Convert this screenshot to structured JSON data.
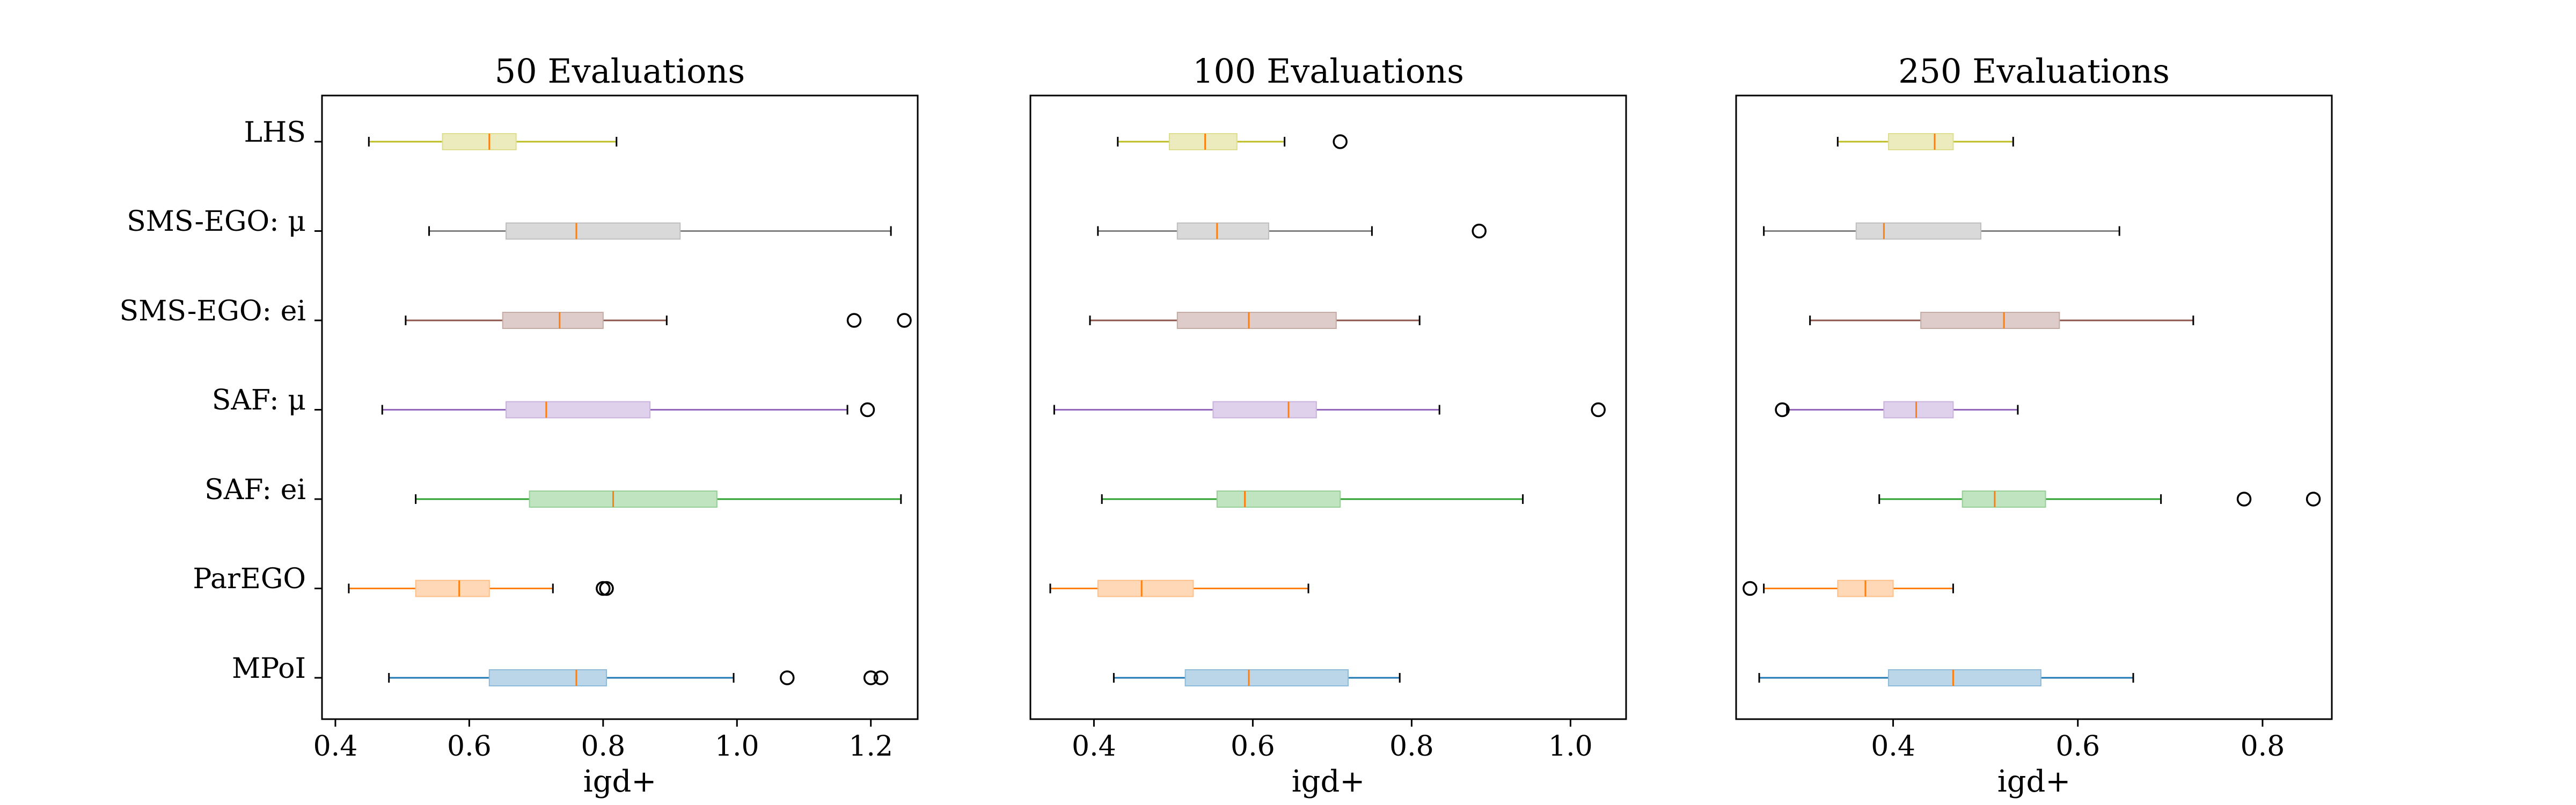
{
  "chart_data": {
    "type": "boxplot",
    "orientation": "horizontal",
    "categories": [
      "LHS",
      "SMS-EGO: μ",
      "SMS-EGO: ei",
      "SAF: μ",
      "SAF: ei",
      "ParEGO",
      "MPoI"
    ],
    "colors": [
      "#bcbd22",
      "#7f7f7f",
      "#8c564b",
      "#9467bd",
      "#2ca02c",
      "#ff7f0e",
      "#1f77b4"
    ],
    "median_color": "#ff7f0e",
    "panels": [
      {
        "title": "50 Evaluations",
        "xlabel": "igd+",
        "xlim": [
          0.38,
          1.27
        ],
        "xticks": [
          0.4,
          0.6,
          0.8,
          1.0,
          1.2
        ],
        "xtick_labels": [
          "0.4",
          "0.6",
          "0.8",
          "1.0",
          "1.2"
        ],
        "boxes": [
          {
            "whislo": 0.45,
            "q1": 0.56,
            "med": 0.63,
            "q3": 0.67,
            "whishi": 0.82,
            "fliers": []
          },
          {
            "whislo": 0.54,
            "q1": 0.655,
            "med": 0.76,
            "q3": 0.915,
            "whishi": 1.23,
            "fliers": []
          },
          {
            "whislo": 0.505,
            "q1": 0.65,
            "med": 0.735,
            "q3": 0.8,
            "whishi": 0.895,
            "fliers": [
              1.175,
              1.25
            ]
          },
          {
            "whislo": 0.47,
            "q1": 0.655,
            "med": 0.715,
            "q3": 0.87,
            "whishi": 1.165,
            "fliers": [
              1.195
            ]
          },
          {
            "whislo": 0.52,
            "q1": 0.69,
            "med": 0.815,
            "q3": 0.97,
            "whishi": 1.245,
            "fliers": []
          },
          {
            "whislo": 0.42,
            "q1": 0.52,
            "med": 0.585,
            "q3": 0.63,
            "whishi": 0.725,
            "fliers": [
              0.8,
              0.805
            ]
          },
          {
            "whislo": 0.48,
            "q1": 0.63,
            "med": 0.76,
            "q3": 0.805,
            "whishi": 0.995,
            "fliers": [
              1.075,
              1.2,
              1.215
            ]
          }
        ]
      },
      {
        "title": "100 Evaluations",
        "xlabel": "igd+",
        "xlim": [
          0.32,
          1.07
        ],
        "xticks": [
          0.4,
          0.6,
          0.8,
          1.0
        ],
        "xtick_labels": [
          "0.4",
          "0.6",
          "0.8",
          "1.0"
        ],
        "boxes": [
          {
            "whislo": 0.43,
            "q1": 0.495,
            "med": 0.54,
            "q3": 0.58,
            "whishi": 0.64,
            "fliers": [
              0.71
            ]
          },
          {
            "whislo": 0.405,
            "q1": 0.505,
            "med": 0.555,
            "q3": 0.62,
            "whishi": 0.75,
            "fliers": [
              0.885
            ]
          },
          {
            "whislo": 0.395,
            "q1": 0.505,
            "med": 0.595,
            "q3": 0.705,
            "whishi": 0.81,
            "fliers": []
          },
          {
            "whislo": 0.35,
            "q1": 0.55,
            "med": 0.645,
            "q3": 0.68,
            "whishi": 0.835,
            "fliers": [
              1.035
            ]
          },
          {
            "whislo": 0.41,
            "q1": 0.555,
            "med": 0.59,
            "q3": 0.71,
            "whishi": 0.94,
            "fliers": []
          },
          {
            "whislo": 0.345,
            "q1": 0.405,
            "med": 0.46,
            "q3": 0.525,
            "whishi": 0.67,
            "fliers": []
          },
          {
            "whislo": 0.425,
            "q1": 0.515,
            "med": 0.595,
            "q3": 0.72,
            "whishi": 0.785,
            "fliers": []
          }
        ]
      },
      {
        "title": "250 Evaluations",
        "xlabel": "igd+",
        "xlim": [
          0.23,
          0.875
        ],
        "xticks": [
          0.4,
          0.6,
          0.8
        ],
        "xtick_labels": [
          "0.4",
          "0.6",
          "0.8"
        ],
        "boxes": [
          {
            "whislo": 0.34,
            "q1": 0.395,
            "med": 0.445,
            "q3": 0.465,
            "whishi": 0.53,
            "fliers": []
          },
          {
            "whislo": 0.26,
            "q1": 0.36,
            "med": 0.39,
            "q3": 0.495,
            "whishi": 0.645,
            "fliers": []
          },
          {
            "whislo": 0.31,
            "q1": 0.43,
            "med": 0.52,
            "q3": 0.58,
            "whishi": 0.725,
            "fliers": []
          },
          {
            "whislo": 0.285,
            "q1": 0.39,
            "med": 0.425,
            "q3": 0.465,
            "whishi": 0.535,
            "fliers": [
              0.28
            ]
          },
          {
            "whislo": 0.385,
            "q1": 0.475,
            "med": 0.51,
            "q3": 0.565,
            "whishi": 0.69,
            "fliers": [
              0.78,
              0.855
            ]
          },
          {
            "whislo": 0.26,
            "q1": 0.34,
            "med": 0.37,
            "q3": 0.4,
            "whishi": 0.465,
            "fliers": [
              0.245
            ]
          },
          {
            "whislo": 0.255,
            "q1": 0.395,
            "med": 0.465,
            "q3": 0.56,
            "whishi": 0.66,
            "fliers": []
          }
        ]
      }
    ]
  }
}
